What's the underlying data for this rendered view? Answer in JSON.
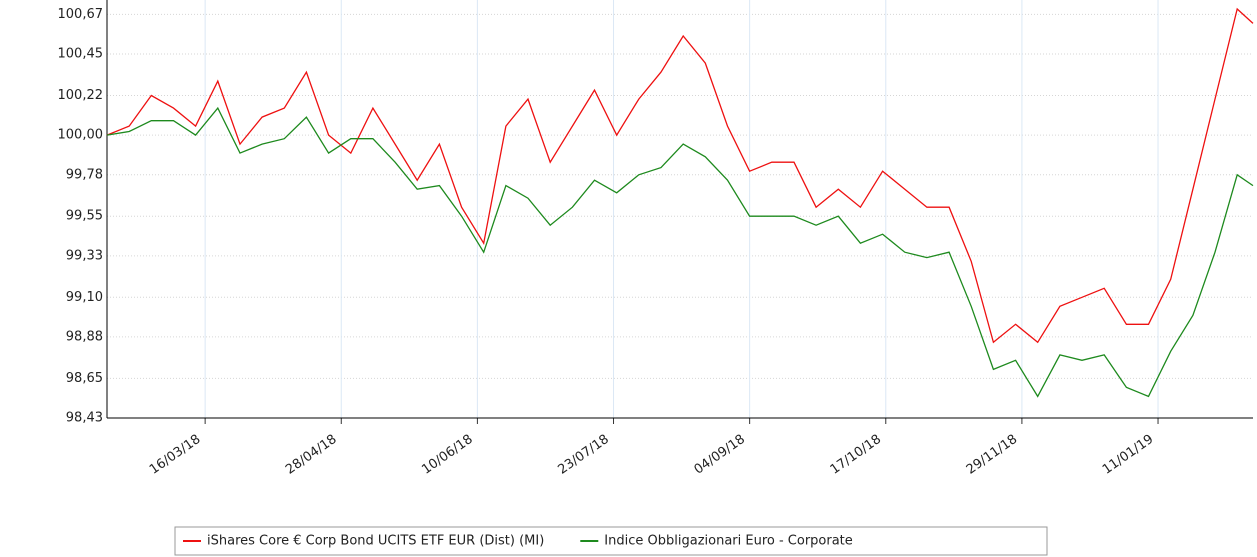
{
  "chart_data": {
    "type": "line",
    "x": [
      "13/02/18",
      "20/02/18",
      "27/02/18",
      "06/03/18",
      "13/03/18",
      "20/03/18",
      "27/03/18",
      "03/04/18",
      "10/04/18",
      "17/04/18",
      "24/04/18",
      "01/05/18",
      "08/05/18",
      "15/05/18",
      "22/05/18",
      "29/05/18",
      "05/06/18",
      "12/06/18",
      "19/06/18",
      "26/06/18",
      "03/07/18",
      "10/07/18",
      "17/07/18",
      "24/07/18",
      "31/07/18",
      "07/08/18",
      "14/08/18",
      "21/08/18",
      "28/08/18",
      "04/09/18",
      "11/09/18",
      "18/09/18",
      "25/09/18",
      "02/10/18",
      "09/10/18",
      "16/10/18",
      "23/10/18",
      "30/10/18",
      "06/11/18",
      "13/11/18",
      "20/11/18",
      "27/11/18",
      "04/12/18",
      "11/12/18",
      "18/12/18",
      "25/12/18",
      "01/01/19",
      "08/01/19",
      "15/01/19",
      "22/01/19",
      "29/01/19",
      "05/02/19",
      "10/02/19"
    ],
    "series": [
      {
        "name": "iShares Core € Corp Bond UCITS ETF EUR (Dist) (MI)",
        "color": "#ee1111",
        "values": [
          100.0,
          100.05,
          100.22,
          100.15,
          100.05,
          100.3,
          99.95,
          100.1,
          100.15,
          100.35,
          100.0,
          99.9,
          100.15,
          99.95,
          99.75,
          99.95,
          99.6,
          99.4,
          100.05,
          100.2,
          99.85,
          100.05,
          100.25,
          100.0,
          100.2,
          100.35,
          100.55,
          100.4,
          100.05,
          99.8,
          99.85,
          99.85,
          99.6,
          99.7,
          99.6,
          99.8,
          99.7,
          99.6,
          99.6,
          99.3,
          98.85,
          98.95,
          98.85,
          99.05,
          99.1,
          99.15,
          98.95,
          98.95,
          99.2,
          99.7,
          100.2,
          100.7,
          100.62
        ]
      },
      {
        "name": "Indice Obbligazionari Euro - Corporate",
        "color": "#1e8a1e",
        "values": [
          100.0,
          100.02,
          100.08,
          100.08,
          100.0,
          100.15,
          99.9,
          99.95,
          99.98,
          100.1,
          99.9,
          99.98,
          99.98,
          99.85,
          99.7,
          99.72,
          99.55,
          99.35,
          99.72,
          99.65,
          99.5,
          99.6,
          99.75,
          99.68,
          99.78,
          99.82,
          99.95,
          99.88,
          99.75,
          99.55,
          99.55,
          99.55,
          99.5,
          99.55,
          99.4,
          99.45,
          99.35,
          99.32,
          99.35,
          99.05,
          98.7,
          98.75,
          98.55,
          98.78,
          98.75,
          98.78,
          98.6,
          98.55,
          98.8,
          99.0,
          99.35,
          99.78,
          99.72
        ]
      }
    ],
    "xlim": [
      "13/02/18",
      "10/02/19"
    ],
    "xticks": [
      "16/03/18",
      "28/04/18",
      "10/06/18",
      "23/07/18",
      "04/09/18",
      "17/10/18",
      "29/11/18",
      "11/01/19"
    ],
    "ylim": [
      98.43,
      100.75
    ],
    "yticks": [
      {
        "value": 98.43,
        "label": "98,43"
      },
      {
        "value": 98.65,
        "label": "98,65"
      },
      {
        "value": 98.88,
        "label": "98,88"
      },
      {
        "value": 99.1,
        "label": "99,10"
      },
      {
        "value": 99.33,
        "label": "99,33"
      },
      {
        "value": 99.55,
        "label": "99,55"
      },
      {
        "value": 99.78,
        "label": "99,78"
      },
      {
        "value": 100.0,
        "label": "100,00"
      },
      {
        "value": 100.22,
        "label": "100,22"
      },
      {
        "value": 100.45,
        "label": "100,45"
      },
      {
        "value": 100.67,
        "label": "100,67"
      }
    ],
    "grid": true
  }
}
